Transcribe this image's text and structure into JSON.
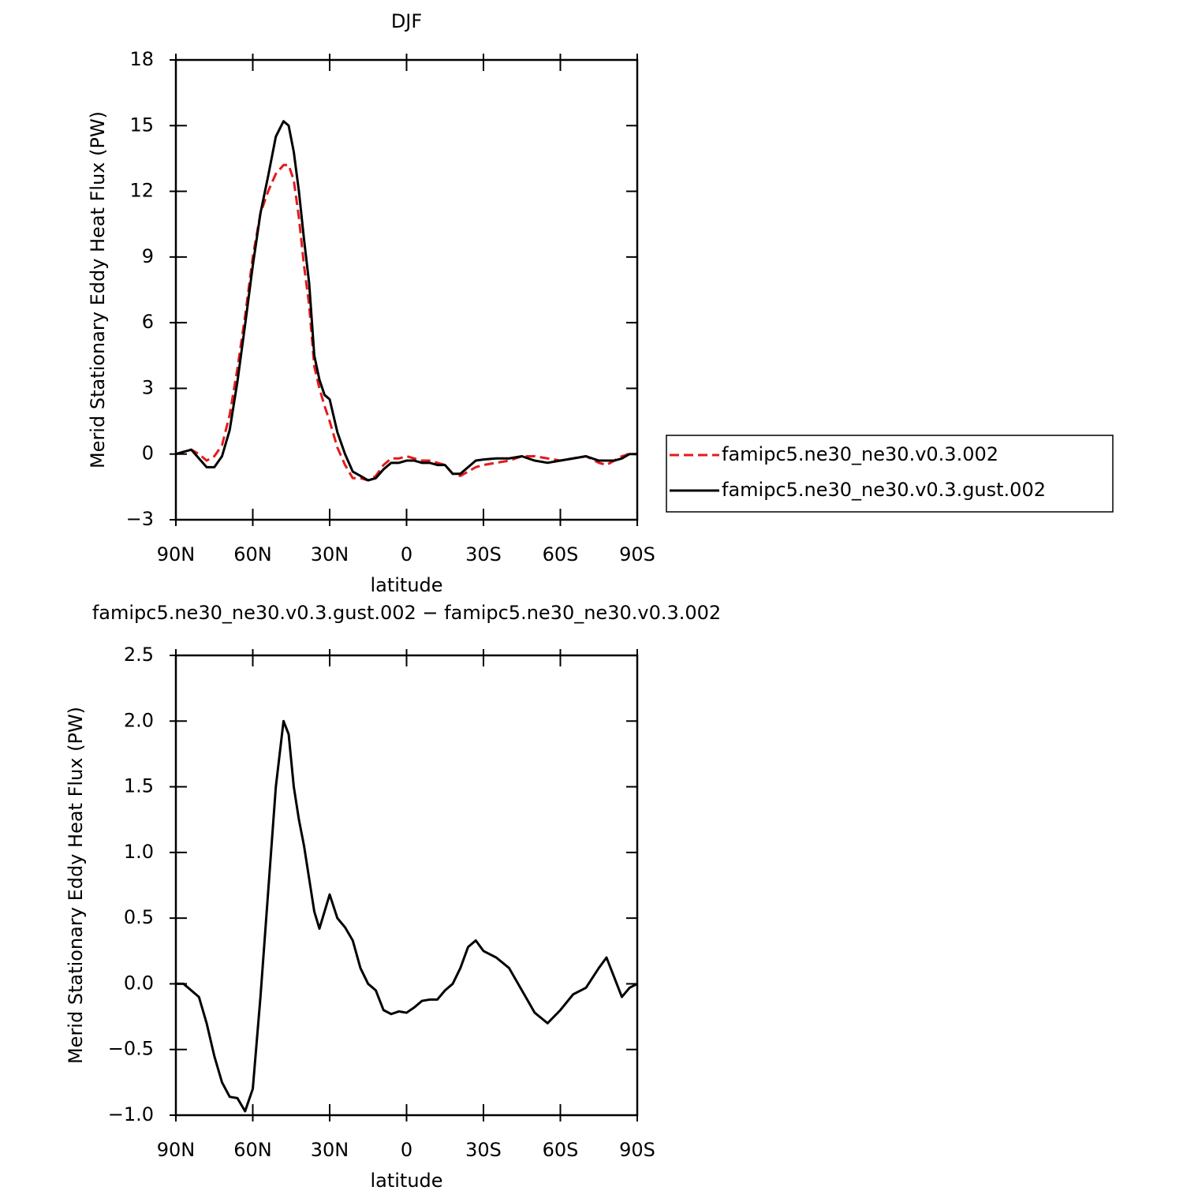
{
  "chart_data": [
    {
      "type": "line",
      "title": "DJF",
      "xlabel": "latitude",
      "ylabel": "Merid Stationary Eddy Heat Flux (PW)",
      "x": [
        90,
        87,
        84,
        81,
        78,
        75,
        72,
        69,
        66,
        63,
        60,
        57,
        54,
        51,
        48,
        46,
        44,
        42,
        40,
        38,
        36,
        34,
        32,
        30,
        27,
        24,
        21,
        18,
        15,
        12,
        9,
        6,
        3,
        0,
        -3,
        -6,
        -9,
        -12,
        -15,
        -18,
        -21,
        -24,
        -27,
        -30,
        -35,
        -40,
        -45,
        -50,
        -55,
        -60,
        -65,
        -70,
        -75,
        -78,
        -81,
        -84,
        -87,
        -90
      ],
      "xlim": [
        90,
        -90
      ],
      "xticks": [
        {
          "value": 90,
          "label": "90N"
        },
        {
          "value": 60,
          "label": "60N"
        },
        {
          "value": 30,
          "label": "30N"
        },
        0,
        {
          "value": -30,
          "label": "30S"
        },
        {
          "value": -60,
          "label": "60S"
        },
        {
          "value": -90,
          "label": "90S"
        }
      ],
      "ylim": [
        -3,
        18
      ],
      "yticks": [
        {
          "value": -3,
          "label": "−3"
        },
        0,
        3,
        6,
        9,
        12,
        15,
        18
      ],
      "legend": "right",
      "series": [
        {
          "name": "famipc5.ne30_ne30.v0.3.002",
          "color": "#e41a1c",
          "style": "dashed",
          "values": [
            0,
            0.1,
            0.2,
            0,
            -0.3,
            -0.1,
            0.4,
            1.8,
            3.9,
            6.3,
            9.0,
            11.0,
            12.0,
            12.8,
            13.2,
            13.2,
            12.5,
            10.8,
            8.6,
            6.8,
            4.0,
            3.0,
            2.2,
            1.5,
            0.3,
            -0.5,
            -1.1,
            -1.1,
            -1.2,
            -1.0,
            -0.5,
            -0.2,
            -0.2,
            -0.1,
            -0.2,
            -0.3,
            -0.3,
            -0.4,
            -0.5,
            -0.9,
            -1.0,
            -0.8,
            -0.6,
            -0.5,
            -0.4,
            -0.3,
            -0.1,
            -0.1,
            -0.2,
            -0.3,
            -0.2,
            -0.1,
            -0.4,
            -0.5,
            -0.3,
            -0.1,
            0,
            0
          ]
        },
        {
          "name": "famipc5.ne30_ne30.v0.3.gust.002",
          "color": "#000000",
          "style": "solid",
          "values": [
            0,
            0.1,
            0.2,
            -0.2,
            -0.6,
            -0.6,
            -0.1,
            1.1,
            3.3,
            5.9,
            8.6,
            11.0,
            12.7,
            14.5,
            15.2,
            15.0,
            13.8,
            12.0,
            9.8,
            7.8,
            4.5,
            3.4,
            2.7,
            2.5,
            1.0,
            0.0,
            -0.8,
            -1.0,
            -1.2,
            -1.1,
            -0.7,
            -0.4,
            -0.4,
            -0.3,
            -0.3,
            -0.4,
            -0.4,
            -0.5,
            -0.5,
            -0.9,
            -0.9,
            -0.6,
            -0.3,
            -0.25,
            -0.2,
            -0.2,
            -0.1,
            -0.3,
            -0.4,
            -0.3,
            -0.2,
            -0.1,
            -0.3,
            -0.3,
            -0.3,
            -0.2,
            0,
            0
          ]
        }
      ]
    },
    {
      "type": "line",
      "title": "famipc5.ne30_ne30.v0.3.gust.002 − famipc5.ne30_ne30.v0.3.002",
      "xlabel": "latitude",
      "ylabel": "Merid Stationary Eddy Heat Flux (PW)",
      "x": [
        90,
        87,
        84,
        81,
        78,
        75,
        72,
        69,
        66,
        63,
        60,
        57,
        54,
        51,
        48,
        46,
        44,
        42,
        40,
        38,
        36,
        34,
        32,
        30,
        27,
        24,
        21,
        18,
        15,
        12,
        9,
        6,
        3,
        0,
        -3,
        -6,
        -9,
        -12,
        -15,
        -18,
        -21,
        -24,
        -27,
        -30,
        -35,
        -40,
        -45,
        -50,
        -55,
        -60,
        -65,
        -70,
        -75,
        -78,
        -81,
        -84,
        -87,
        -90
      ],
      "xlim": [
        90,
        -90
      ],
      "xticks": [
        {
          "value": 90,
          "label": "90N"
        },
        {
          "value": 60,
          "label": "60N"
        },
        {
          "value": 30,
          "label": "30N"
        },
        0,
        {
          "value": -30,
          "label": "30S"
        },
        {
          "value": -60,
          "label": "60S"
        },
        {
          "value": -90,
          "label": "90S"
        }
      ],
      "ylim": [
        -1.0,
        2.5
      ],
      "yticks": [
        {
          "value": -1.0,
          "label": "−1.0"
        },
        {
          "value": -0.5,
          "label": "−0.5"
        },
        {
          "value": 0.0,
          "label": "0.0"
        },
        0.5,
        {
          "value": 1.0,
          "label": "1.0"
        },
        1.5,
        {
          "value": 2.0,
          "label": "2.0"
        },
        2.5
      ],
      "color": "#000000",
      "values": [
        0,
        0,
        -0.05,
        -0.1,
        -0.3,
        -0.55,
        -0.75,
        -0.86,
        -0.87,
        -0.97,
        -0.8,
        -0.1,
        0.7,
        1.5,
        2.0,
        1.9,
        1.5,
        1.25,
        1.05,
        0.8,
        0.55,
        0.42,
        0.55,
        0.68,
        0.5,
        0.43,
        0.33,
        0.12,
        0.0,
        -0.05,
        -0.2,
        -0.23,
        -0.21,
        -0.22,
        -0.18,
        -0.13,
        -0.12,
        -0.12,
        -0.05,
        0.0,
        0.12,
        0.28,
        0.33,
        0.25,
        0.2,
        0.12,
        -0.05,
        -0.22,
        -0.3,
        -0.2,
        -0.08,
        -0.03,
        0.12,
        0.2,
        0.05,
        -0.1,
        -0.03,
        0
      ]
    }
  ]
}
